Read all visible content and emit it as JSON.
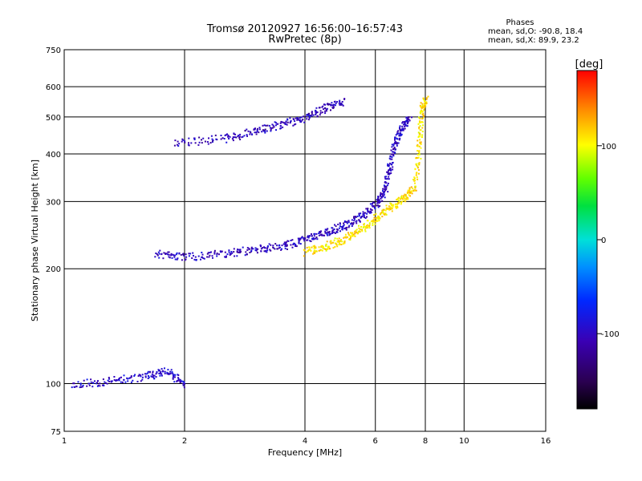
{
  "chart_data": {
    "type": "scatter",
    "title": "Tromsø 20120927 16:56:00–16:57:43",
    "subtitle": "RwPretec (8p)",
    "phase_box": {
      "title": "Phases",
      "line_o": "mean, sd,O: -90.8, 18.4",
      "line_x": "mean, sd,X:  89.9, 23.2"
    },
    "xlabel": "Frequency [MHz]",
    "ylabel": "Stationary phase Virtual Height [km]",
    "x_scale": "log",
    "y_scale": "log",
    "xlim": [
      1,
      16
    ],
    "ylim": [
      75,
      750
    ],
    "xticks": [
      {
        "value": 1,
        "label": "1"
      },
      {
        "value": 2,
        "label": "2"
      },
      {
        "value": 4,
        "label": "4"
      },
      {
        "value": 6,
        "label": "6"
      },
      {
        "value": 8,
        "label": "8"
      },
      {
        "value": 10,
        "label": "10"
      },
      {
        "value": 16,
        "label": "16"
      }
    ],
    "yticks": [
      {
        "value": 75,
        "label": "75"
      },
      {
        "value": 100,
        "label": "100"
      },
      {
        "value": 200,
        "label": "200"
      },
      {
        "value": 300,
        "label": "300"
      },
      {
        "value": 400,
        "label": "400"
      },
      {
        "value": 500,
        "label": "500"
      },
      {
        "value": 600,
        "label": "600"
      },
      {
        "value": 750,
        "label": "750"
      }
    ],
    "grid": true,
    "colorbar": {
      "label": "[deg]",
      "range": [
        -180,
        180
      ],
      "ticks": [
        {
          "value": 100,
          "label": "100"
        },
        {
          "value": 0,
          "label": "0"
        },
        {
          "value": -100,
          "label": "-100"
        }
      ]
    },
    "traces": [
      {
        "name": "",
        "approx_phase_deg": -100,
        "points": [
          [
            1.7,
            220
          ],
          [
            2.0,
            215
          ],
          [
            2.5,
            220
          ],
          [
            3.0,
            225
          ],
          [
            3.5,
            230
          ],
          [
            4.0,
            240
          ],
          [
            4.5,
            250
          ],
          [
            5.0,
            260
          ],
          [
            5.5,
            275
          ],
          [
            6.0,
            295
          ],
          [
            6.3,
            320
          ],
          [
            6.5,
            370
          ],
          [
            6.7,
            430
          ],
          [
            7.0,
            470
          ],
          [
            7.3,
            500
          ]
        ]
      },
      {
        "name": "",
        "approx_phase_deg": 110,
        "points": [
          [
            4.0,
            222
          ],
          [
            4.5,
            230
          ],
          [
            5.0,
            240
          ],
          [
            5.5,
            255
          ],
          [
            6.0,
            272
          ],
          [
            6.5,
            290
          ],
          [
            7.0,
            305
          ],
          [
            7.5,
            330
          ],
          [
            7.7,
            420
          ],
          [
            7.8,
            520
          ],
          [
            8.0,
            560
          ]
        ]
      },
      {
        "name": "",
        "approx_phase_deg": -105,
        "points": [
          [
            1.9,
            430
          ],
          [
            2.5,
            440
          ],
          [
            3.0,
            460
          ],
          [
            3.5,
            480
          ],
          [
            4.0,
            500
          ],
          [
            4.5,
            530
          ],
          [
            5.0,
            550
          ]
        ]
      },
      {
        "name": "",
        "approx_phase_deg": -95,
        "points": [
          [
            1.05,
            100
          ],
          [
            1.3,
            102
          ],
          [
            1.6,
            105
          ],
          [
            1.8,
            108
          ],
          [
            2.0,
            100
          ]
        ]
      }
    ]
  }
}
